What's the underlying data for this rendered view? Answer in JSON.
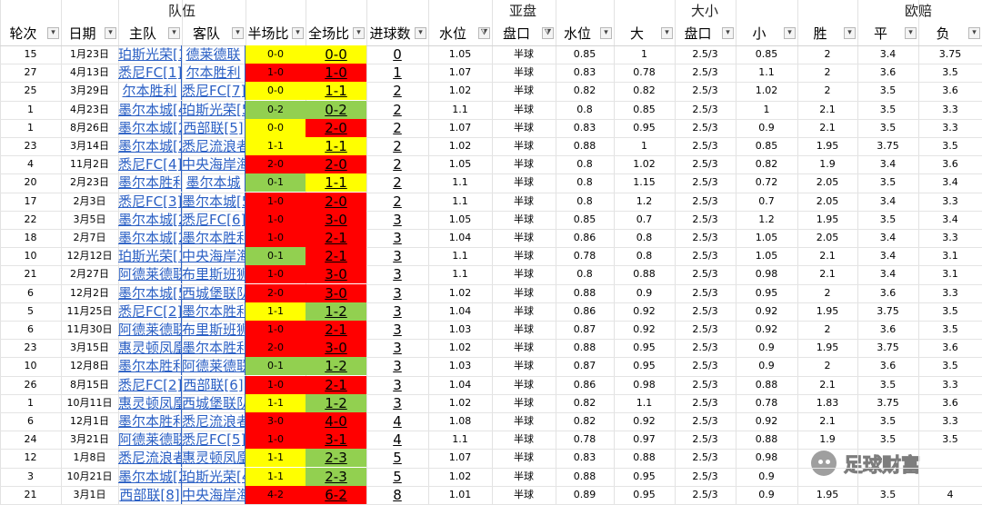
{
  "group_headers": {
    "team": "队伍",
    "asian": "亚盘",
    "ou": "大小",
    "euro": "欧赔"
  },
  "columns": [
    "轮次",
    "日期",
    "主队",
    "客队",
    "半场比",
    "全场比",
    "进球数",
    "水位",
    "盘口",
    "水位",
    "大",
    "盘口",
    "小",
    "胜",
    "平",
    "负"
  ],
  "filter_icons": {
    "standard": "dropdown-arrow-icon",
    "active": "filter-funnel-icon",
    "active_columns": [
      7,
      8
    ]
  },
  "colors": {
    "red": "#ff0000",
    "yellow": "#ffff00",
    "green": "#92d050",
    "link": "#2a5fc4"
  },
  "rows": [
    {
      "round": "15",
      "date": "1月23日",
      "home": "珀斯光荣[1]",
      "away": "德莱德联",
      "half": "0-0",
      "full": "0-0",
      "goals": "0",
      "w1": "1.05",
      "line": "半球",
      "w2": "0.85",
      "big": "1",
      "ou_line": "2.5/3",
      "small": "0.85",
      "win": "2",
      "draw": "3.4",
      "loss": "3.75",
      "half_color": "yellow",
      "full_color": "yellow"
    },
    {
      "round": "27",
      "date": "4月13日",
      "home": "悉尼FC[1]",
      "away": "尔本胜利",
      "half": "1-0",
      "full": "1-0",
      "goals": "1",
      "w1": "1.07",
      "line": "半球",
      "w2": "0.83",
      "big": "0.78",
      "ou_line": "2.5/3",
      "small": "1.1",
      "win": "2",
      "draw": "3.6",
      "loss": "3.5",
      "half_color": "red",
      "full_color": "red"
    },
    {
      "round": "25",
      "date": "3月29日",
      "home": "尔本胜利",
      "away": "悉尼FC[7]",
      "half": "0-0",
      "full": "1-1",
      "goals": "2",
      "w1": "1.02",
      "line": "半球",
      "w2": "0.82",
      "big": "0.82",
      "ou_line": "2.5/3",
      "small": "1.02",
      "win": "2",
      "draw": "3.5",
      "loss": "3.6",
      "half_color": "yellow",
      "full_color": "yellow"
    },
    {
      "round": "1",
      "date": "4月23日",
      "home": "墨尔本城[4]",
      "away": "珀斯光荣[5]",
      "half": "0-2",
      "full": "0-2",
      "goals": "2",
      "w1": "1.1",
      "line": "半球",
      "w2": "0.8",
      "big": "0.85",
      "ou_line": "2.5/3",
      "small": "1",
      "win": "2.1",
      "draw": "3.5",
      "loss": "3.3",
      "half_color": "green",
      "full_color": "green"
    },
    {
      "round": "1",
      "date": "8月26日",
      "home": "墨尔本城[2]",
      "away": "西部联[5]",
      "half": "0-0",
      "full": "2-0",
      "goals": "2",
      "w1": "1.07",
      "line": "半球",
      "w2": "0.83",
      "big": "0.95",
      "ou_line": "2.5/3",
      "small": "0.9",
      "win": "2.1",
      "draw": "3.5",
      "loss": "3.3",
      "half_color": "yellow",
      "full_color": "red"
    },
    {
      "round": "23",
      "date": "3月14日",
      "home": "墨尔本城[2]",
      "away": "悉尼流浪者",
      "half": "1-1",
      "full": "1-1",
      "goals": "2",
      "w1": "1.02",
      "line": "半球",
      "w2": "0.88",
      "big": "1",
      "ou_line": "2.5/3",
      "small": "0.85",
      "win": "1.95",
      "draw": "3.75",
      "loss": "3.5",
      "half_color": "yellow",
      "full_color": "yellow"
    },
    {
      "round": "4",
      "date": "11月2日",
      "home": "悉尼FC[4]",
      "away": "中央海岸海员",
      "half": "2-0",
      "full": "2-0",
      "goals": "2",
      "w1": "1.05",
      "line": "半球",
      "w2": "0.8",
      "big": "1.02",
      "ou_line": "2.5/3",
      "small": "0.82",
      "win": "1.9",
      "draw": "3.4",
      "loss": "3.6",
      "half_color": "red",
      "full_color": "red"
    },
    {
      "round": "20",
      "date": "2月23日",
      "home": "墨尔本胜利",
      "away": "墨尔本城",
      "half": "0-1",
      "full": "1-1",
      "goals": "2",
      "w1": "1.1",
      "line": "半球",
      "w2": "0.8",
      "big": "1.15",
      "ou_line": "2.5/3",
      "small": "0.72",
      "win": "2.05",
      "draw": "3.5",
      "loss": "3.4",
      "half_color": "green",
      "full_color": "yellow"
    },
    {
      "round": "17",
      "date": "2月3日",
      "home": "悉尼FC[3]",
      "away": "墨尔本城[5]",
      "half": "1-0",
      "full": "2-0",
      "goals": "2",
      "w1": "1.1",
      "line": "半球",
      "w2": "0.8",
      "big": "1.2",
      "ou_line": "2.5/3",
      "small": "0.7",
      "win": "2.05",
      "draw": "3.4",
      "loss": "3.3",
      "half_color": "red",
      "full_color": "red"
    },
    {
      "round": "22",
      "date": "3月5日",
      "home": "墨尔本城[2]",
      "away": "悉尼FC[6]",
      "half": "1-0",
      "full": "3-0",
      "goals": "3",
      "w1": "1.05",
      "line": "半球",
      "w2": "0.85",
      "big": "0.7",
      "ou_line": "2.5/3",
      "small": "1.2",
      "win": "1.95",
      "draw": "3.5",
      "loss": "3.4",
      "half_color": "red",
      "full_color": "red"
    },
    {
      "round": "18",
      "date": "2月7日",
      "home": "墨尔本城[2]",
      "away": "墨尔本胜利",
      "half": "1-0",
      "full": "2-1",
      "goals": "3",
      "w1": "1.04",
      "line": "半球",
      "w2": "0.86",
      "big": "0.8",
      "ou_line": "2.5/3",
      "small": "1.05",
      "win": "2.05",
      "draw": "3.4",
      "loss": "3.3",
      "half_color": "red",
      "full_color": "red"
    },
    {
      "round": "10",
      "date": "12月12日",
      "home": "珀斯光荣[1]",
      "away": "中央海岸海员",
      "half": "0-1",
      "full": "2-1",
      "goals": "3",
      "w1": "1.1",
      "line": "半球",
      "w2": "0.78",
      "big": "0.8",
      "ou_line": "2.5/3",
      "small": "1.05",
      "win": "2.1",
      "draw": "3.4",
      "loss": "3.1",
      "half_color": "green",
      "full_color": "red"
    },
    {
      "round": "21",
      "date": "2月27日",
      "home": "阿德莱德联",
      "away": "布里斯班狮吼",
      "half": "1-0",
      "full": "3-0",
      "goals": "3",
      "w1": "1.1",
      "line": "半球",
      "w2": "0.8",
      "big": "0.88",
      "ou_line": "2.5/3",
      "small": "0.98",
      "win": "2.1",
      "draw": "3.4",
      "loss": "3.1",
      "half_color": "red",
      "full_color": "red"
    },
    {
      "round": "6",
      "date": "12月2日",
      "home": "墨尔本城[5]",
      "away": "西城堡联队",
      "half": "2-0",
      "full": "3-0",
      "goals": "3",
      "w1": "1.02",
      "line": "半球",
      "w2": "0.88",
      "big": "0.9",
      "ou_line": "2.5/3",
      "small": "0.95",
      "win": "2",
      "draw": "3.6",
      "loss": "3.3",
      "half_color": "red",
      "full_color": "red"
    },
    {
      "round": "5",
      "date": "11月25日",
      "home": "悉尼FC[2]",
      "away": "墨尔本胜利",
      "half": "1-1",
      "full": "1-2",
      "goals": "3",
      "w1": "1.04",
      "line": "半球",
      "w2": "0.86",
      "big": "0.92",
      "ou_line": "2.5/3",
      "small": "0.92",
      "win": "1.95",
      "draw": "3.75",
      "loss": "3.5",
      "half_color": "yellow",
      "full_color": "green"
    },
    {
      "round": "6",
      "date": "11月30日",
      "home": "阿德莱德联",
      "away": "布里斯班狮吼",
      "half": "1-0",
      "full": "2-1",
      "goals": "3",
      "w1": "1.03",
      "line": "半球",
      "w2": "0.87",
      "big": "0.92",
      "ou_line": "2.5/3",
      "small": "0.92",
      "win": "2",
      "draw": "3.6",
      "loss": "3.5",
      "half_color": "red",
      "full_color": "red"
    },
    {
      "round": "23",
      "date": "3月15日",
      "home": "惠灵顿凤凰",
      "away": "墨尔本胜利",
      "half": "2-0",
      "full": "3-0",
      "goals": "3",
      "w1": "1.02",
      "line": "半球",
      "w2": "0.88",
      "big": "0.95",
      "ou_line": "2.5/3",
      "small": "0.9",
      "win": "1.95",
      "draw": "3.75",
      "loss": "3.6",
      "half_color": "red",
      "full_color": "red"
    },
    {
      "round": "10",
      "date": "12月8日",
      "home": "墨尔本胜利",
      "away": "阿德莱德联",
      "half": "0-1",
      "full": "1-2",
      "goals": "3",
      "w1": "1.03",
      "line": "半球",
      "w2": "0.87",
      "big": "0.95",
      "ou_line": "2.5/3",
      "small": "0.9",
      "win": "2",
      "draw": "3.6",
      "loss": "3.5",
      "half_color": "green",
      "full_color": "green"
    },
    {
      "round": "26",
      "date": "8月15日",
      "home": "悉尼FC[2]",
      "away": "西部联[6]",
      "half": "1-0",
      "full": "2-1",
      "goals": "3",
      "w1": "1.04",
      "line": "半球",
      "w2": "0.86",
      "big": "0.98",
      "ou_line": "2.5/3",
      "small": "0.88",
      "win": "2.1",
      "draw": "3.5",
      "loss": "3.3",
      "half_color": "red",
      "full_color": "red"
    },
    {
      "round": "1",
      "date": "10月11日",
      "home": "惠灵顿凤凰",
      "away": "西城堡联队[1]",
      "half": "1-1",
      "full": "1-2",
      "goals": "3",
      "w1": "1.02",
      "line": "半球",
      "w2": "0.82",
      "big": "1.1",
      "ou_line": "2.5/3",
      "small": "0.78",
      "win": "1.83",
      "draw": "3.75",
      "loss": "3.6",
      "half_color": "yellow",
      "full_color": "green"
    },
    {
      "round": "6",
      "date": "12月1日",
      "home": "墨尔本胜利",
      "away": "悉尼流浪者",
      "half": "3-0",
      "full": "4-0",
      "goals": "4",
      "w1": "1.08",
      "line": "半球",
      "w2": "0.82",
      "big": "0.92",
      "ou_line": "2.5/3",
      "small": "0.92",
      "win": "2.1",
      "draw": "3.5",
      "loss": "3.3",
      "half_color": "red",
      "full_color": "red"
    },
    {
      "round": "24",
      "date": "3月21日",
      "home": "阿德莱德联",
      "away": "悉尼FC[5]",
      "half": "1-0",
      "full": "3-1",
      "goals": "4",
      "w1": "1.1",
      "line": "半球",
      "w2": "0.78",
      "big": "0.97",
      "ou_line": "2.5/3",
      "small": "0.88",
      "win": "1.9",
      "draw": "3.5",
      "loss": "3.5",
      "half_color": "red",
      "full_color": "red"
    },
    {
      "round": "12",
      "date": "1月8日",
      "home": "悉尼流浪者",
      "away": "惠灵顿凤凰",
      "half": "1-1",
      "full": "2-3",
      "goals": "5",
      "w1": "1.07",
      "line": "半球",
      "w2": "0.83",
      "big": "0.88",
      "ou_line": "2.5/3",
      "small": "0.98",
      "win": "",
      "draw": "",
      "loss": "",
      "half_color": "yellow",
      "full_color": "green"
    },
    {
      "round": "3",
      "date": "10月21日",
      "home": "墨尔本城[2]",
      "away": "珀斯光荣[4]",
      "half": "1-1",
      "full": "2-3",
      "goals": "5",
      "w1": "1.02",
      "line": "半球",
      "w2": "0.88",
      "big": "0.95",
      "ou_line": "2.5/3",
      "small": "0.9",
      "win": "",
      "draw": "",
      "loss": "",
      "half_color": "yellow",
      "full_color": "green"
    },
    {
      "round": "21",
      "date": "3月1日",
      "home": "西部联[8]",
      "away": "中央海岸海员",
      "half": "4-2",
      "full": "6-2",
      "goals": "8",
      "w1": "1.01",
      "line": "半球",
      "w2": "0.89",
      "big": "0.95",
      "ou_line": "2.5/3",
      "small": "0.9",
      "win": "1.95",
      "draw": "3.5",
      "loss": "4",
      "half_color": "red",
      "full_color": "red"
    }
  ],
  "watermark": {
    "text": "足球财富",
    "icon": "wechat-icon"
  }
}
